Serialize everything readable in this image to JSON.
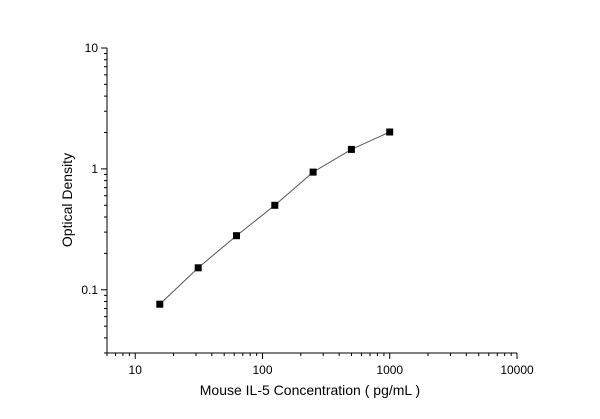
{
  "chart_data": {
    "type": "scatter",
    "title": "",
    "xlabel": "Mouse IL-5  Concentration ( pg/mL )",
    "ylabel": "Optical Density",
    "x_scale": "log",
    "y_scale": "log",
    "xlim": [
      6,
      10000
    ],
    "ylim": [
      0.03,
      10
    ],
    "x_ticks": [
      {
        "value": 10,
        "label": "10"
      },
      {
        "value": 100,
        "label": "100"
      },
      {
        "value": 1000,
        "label": "1000"
      },
      {
        "value": 10000,
        "label": "10000"
      }
    ],
    "y_ticks": [
      {
        "value": 0.1,
        "label": "0.1"
      },
      {
        "value": 1,
        "label": "1"
      },
      {
        "value": 10,
        "label": "10"
      }
    ],
    "grid": false,
    "legend": "none",
    "marker": "square",
    "connected": true,
    "colors": {
      "marker": "#000000",
      "line": "#555555",
      "axis": "#000000"
    },
    "series": [
      {
        "x": [
          15.6,
          31.25,
          62.5,
          125,
          250,
          500,
          1000
        ],
        "y": [
          0.076,
          0.152,
          0.28,
          0.5,
          0.94,
          1.45,
          2.02
        ]
      }
    ]
  }
}
